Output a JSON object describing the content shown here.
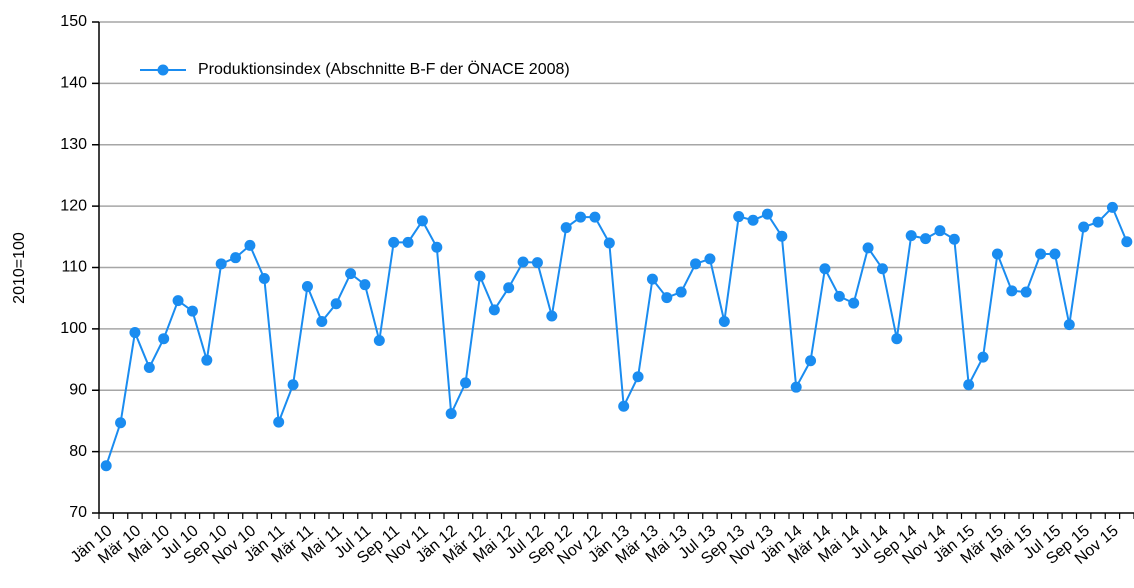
{
  "chart_data": {
    "type": "line",
    "y_label": "2010=100",
    "categories": [
      "Jän 10",
      null,
      "Mär 10",
      null,
      "Mai 10",
      null,
      "Jul 10",
      null,
      "Sep 10",
      null,
      "Nov 10",
      null,
      "Jän 11",
      null,
      "Mär 11",
      null,
      "Mai 11",
      null,
      "Jul 11",
      null,
      "Sep 11",
      null,
      "Nov 11",
      null,
      "Jän 12",
      null,
      "Mär 12",
      null,
      "Mai 12",
      null,
      "Jul 12",
      null,
      "Sep 12",
      null,
      "Nov 12",
      null,
      "Jän 13",
      null,
      "Mär 13",
      null,
      "Mai 13",
      null,
      "Jul 13",
      null,
      "Sep 13",
      null,
      "Nov 13",
      null,
      "Jän 14",
      null,
      "Mär 14",
      null,
      "Mai 14",
      null,
      "Jul 14",
      null,
      "Sep 14",
      null,
      "Nov 14",
      null,
      "Jän 15",
      null,
      "Mär 15",
      null,
      "Mai 15",
      null,
      "Jul 15",
      null,
      "Sep 15",
      null,
      "Nov 15",
      null
    ],
    "series": [
      {
        "name": "Produktionsindex (Abschnitte B-F der ÖNACE 2008)",
        "color": "#1a8cf0",
        "values": [
          77.7,
          84.7,
          99.4,
          93.7,
          98.4,
          104.6,
          102.9,
          94.9,
          110.6,
          111.6,
          113.6,
          108.2,
          84.8,
          90.9,
          106.9,
          101.2,
          104.1,
          109.0,
          107.2,
          98.1,
          114.1,
          114.1,
          117.6,
          113.3,
          86.2,
          91.2,
          108.6,
          103.1,
          106.7,
          110.9,
          110.8,
          102.1,
          116.5,
          118.2,
          118.2,
          114.0,
          87.4,
          92.2,
          108.1,
          105.1,
          106.0,
          110.6,
          111.4,
          101.2,
          118.3,
          117.7,
          118.7,
          115.1,
          90.5,
          94.8,
          109.8,
          105.3,
          104.2,
          113.2,
          109.8,
          98.4,
          115.2,
          114.7,
          116.0,
          114.6,
          90.9,
          95.4,
          112.2,
          106.2,
          106.0,
          112.2,
          112.2,
          100.7,
          116.6,
          117.4,
          119.8,
          114.2
        ]
      }
    ],
    "ylim": [
      70,
      150
    ],
    "yticks": [
      70,
      80,
      90,
      100,
      110,
      120,
      130,
      140,
      150
    ],
    "grid": true,
    "legend": "top-left"
  }
}
